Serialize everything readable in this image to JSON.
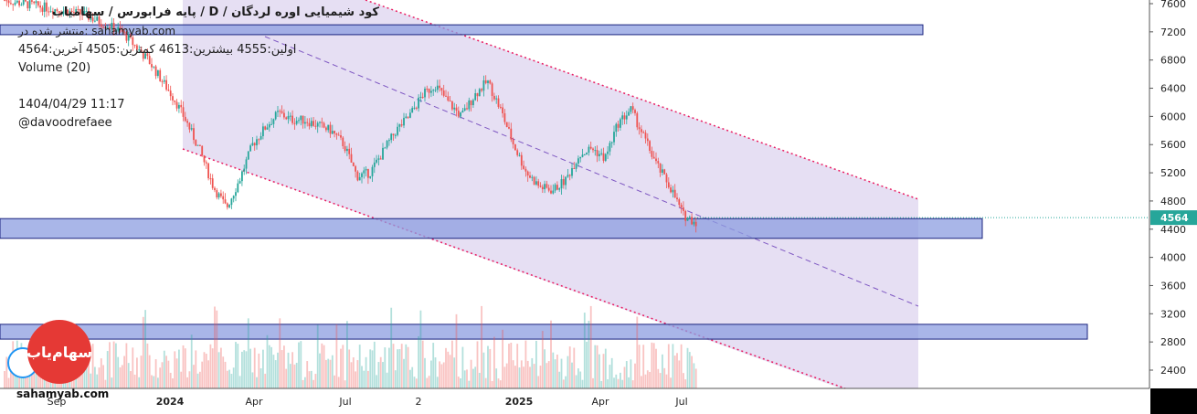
{
  "header": {
    "title": "کود شیمیایی اوره لردگان / D / پایه فرابورس / سهامیاب",
    "published": "منتشر شده در: sahamyab.com",
    "ohlc": "اولین:4555 بیشترین:4613 کمترین:4505 آخرین:4564",
    "volume_label": "Volume (20)",
    "datetime": "1404/04/29 11:17",
    "author": "@davoodrefaee"
  },
  "watermark": "sahamyab.com",
  "logo_text": "سهام‌یاب",
  "colors": {
    "up": "#26a69a",
    "down": "#ef5350",
    "channel": "#d1c4e9",
    "zone": "#8c9ee0",
    "zone_border": "#1a237e",
    "badge": "#26a69a",
    "trend": "#e91e63"
  },
  "chart_data": {
    "type": "candlestick",
    "y_ticks": [
      7600,
      7200,
      6800,
      6400,
      6000,
      5600,
      5200,
      4800,
      4400,
      4000,
      3600,
      3200,
      2800,
      2400
    ],
    "ylim": [
      2200,
      7800
    ],
    "x_ticks": [
      "Sep",
      "2024",
      "Apr",
      "Jul",
      "2",
      "2025",
      "Apr",
      "Jul"
    ],
    "last_price": "4564",
    "price_path": [
      [
        0,
        7650
      ],
      [
        6,
        7450
      ],
      [
        9,
        7200
      ],
      [
        11,
        6800
      ],
      [
        13,
        6250
      ],
      [
        14,
        5900
      ],
      [
        15,
        5500
      ],
      [
        16,
        5000
      ],
      [
        17,
        4700
      ],
      [
        18,
        5100
      ],
      [
        19,
        5600
      ],
      [
        20,
        5850
      ],
      [
        21,
        6050
      ],
      [
        22,
        5950
      ],
      [
        23,
        5950
      ],
      [
        25,
        5800
      ],
      [
        26,
        5600
      ],
      [
        27,
        5150
      ],
      [
        28,
        5200
      ],
      [
        29,
        5500
      ],
      [
        30,
        5800
      ],
      [
        31,
        6000
      ],
      [
        32,
        6300
      ],
      [
        33,
        6450
      ],
      [
        34,
        6200
      ],
      [
        35,
        6000
      ],
      [
        36,
        6300
      ],
      [
        37,
        6500
      ],
      [
        38,
        6100
      ],
      [
        39,
        5600
      ],
      [
        40,
        5200
      ],
      [
        41,
        5000
      ],
      [
        42,
        4950
      ],
      [
        43,
        5100
      ],
      [
        44,
        5450
      ],
      [
        45,
        5550
      ],
      [
        46,
        5400
      ],
      [
        47,
        5900
      ],
      [
        48,
        6100
      ],
      [
        49,
        5700
      ],
      [
        50,
        5300
      ],
      [
        51,
        5000
      ],
      [
        52,
        4600
      ],
      [
        53,
        4500
      ]
    ],
    "zones": [
      {
        "price_top": 7300,
        "price_bottom": 7160,
        "end": 1010
      },
      {
        "price_top": 4550,
        "price_bottom": 4270,
        "end": 1075
      },
      {
        "price_top": 3050,
        "price_bottom": 2840,
        "end": 1190
      }
    ]
  }
}
